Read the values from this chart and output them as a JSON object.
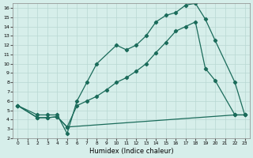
{
  "xlabel": "Humidex (Indice chaleur)",
  "xlim": [
    -0.5,
    23.5
  ],
  "ylim": [
    2,
    16.5
  ],
  "xticks": [
    0,
    1,
    2,
    3,
    4,
    5,
    6,
    7,
    8,
    9,
    10,
    11,
    12,
    13,
    14,
    15,
    16,
    17,
    18,
    19,
    20,
    21,
    22,
    23
  ],
  "yticks": [
    2,
    3,
    4,
    5,
    6,
    7,
    8,
    9,
    10,
    11,
    12,
    13,
    14,
    15,
    16
  ],
  "line_color": "#1a6b5a",
  "bg_color": "#d6eeea",
  "grid_color": "#b8d8d2",
  "lines": [
    {
      "x": [
        0,
        2,
        3,
        4,
        5,
        6,
        7,
        8,
        10,
        11,
        12,
        13,
        14,
        15,
        16,
        17,
        18,
        19,
        20,
        22,
        23
      ],
      "y": [
        5.5,
        4.5,
        4.5,
        4.5,
        2.5,
        6.0,
        8.0,
        10.0,
        12.0,
        11.5,
        12.0,
        13.0,
        14.5,
        15.2,
        15.5,
        16.3,
        16.5,
        14.8,
        12.5,
        8.0,
        4.5
      ]
    },
    {
      "x": [
        0,
        2,
        3,
        4,
        5,
        6,
        7,
        8,
        9,
        10,
        11,
        12,
        13,
        14,
        15,
        16,
        17,
        18,
        19,
        20,
        22,
        23
      ],
      "y": [
        5.5,
        4.2,
        4.2,
        4.3,
        3.2,
        5.5,
        6.0,
        6.5,
        7.2,
        8.0,
        8.5,
        9.2,
        10.0,
        11.2,
        12.3,
        13.5,
        14.0,
        14.5,
        9.5,
        8.2,
        4.5,
        4.5
      ]
    },
    {
      "x": [
        0,
        2,
        3,
        4,
        5,
        22,
        23
      ],
      "y": [
        5.5,
        4.2,
        4.2,
        4.3,
        3.2,
        4.5,
        4.5
      ]
    }
  ]
}
